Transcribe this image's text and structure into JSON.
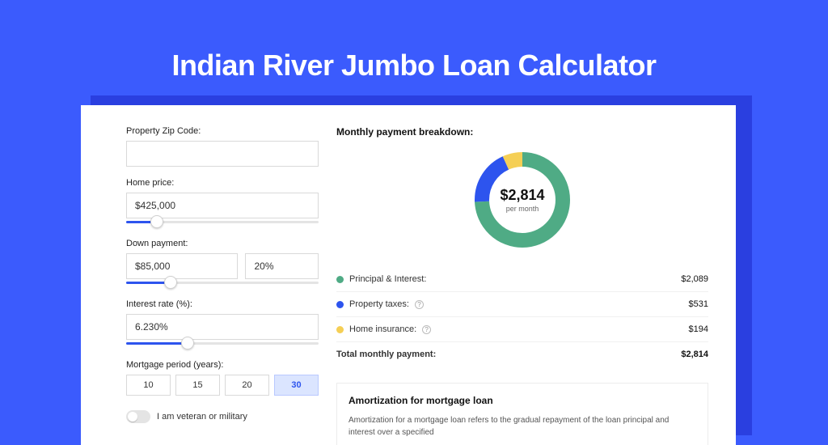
{
  "hero": {
    "title": "Indian River Jumbo Loan Calculator"
  },
  "colors": {
    "background": "#3b5bfd",
    "shadow": "#2a3fe0",
    "panel": "#ffffff",
    "primary": "#2d54ee"
  },
  "form": {
    "zip": {
      "label": "Property Zip Code:",
      "value": ""
    },
    "home_price": {
      "label": "Home price:",
      "value": "$425,000",
      "slider_percent": 16
    },
    "down_payment": {
      "label": "Down payment:",
      "amount": "$85,000",
      "percent": "20%",
      "slider_percent": 23
    },
    "interest_rate": {
      "label": "Interest rate (%):",
      "value": "6.230%",
      "slider_percent": 32
    },
    "mortgage_period": {
      "label": "Mortgage period (years):",
      "options": [
        "10",
        "15",
        "20",
        "30"
      ],
      "selected": "30"
    },
    "veteran": {
      "label": "I am veteran or military",
      "checked": false
    }
  },
  "breakdown": {
    "title": "Monthly payment breakdown:",
    "center_amount": "$2,814",
    "center_sub": "per month",
    "donut": {
      "radius": 50,
      "stroke": 18,
      "circumference": 314.16,
      "segments": [
        {
          "name": "principal-interest",
          "color": "#4fab85",
          "fraction": 0.742
        },
        {
          "name": "property-taxes",
          "color": "#2d54ee",
          "fraction": 0.189
        },
        {
          "name": "home-insurance",
          "color": "#f5cf55",
          "fraction": 0.069
        }
      ]
    },
    "legend": [
      {
        "label": "Principal & Interest:",
        "color": "#4fab85",
        "value": "$2,089",
        "info": false
      },
      {
        "label": "Property taxes:",
        "color": "#2d54ee",
        "value": "$531",
        "info": true
      },
      {
        "label": "Home insurance:",
        "color": "#f5cf55",
        "value": "$194",
        "info": true
      }
    ],
    "total": {
      "label": "Total monthly payment:",
      "value": "$2,814"
    }
  },
  "amortization": {
    "title": "Amortization for mortgage loan",
    "text": "Amortization for a mortgage loan refers to the gradual repayment of the loan principal and interest over a specified"
  }
}
